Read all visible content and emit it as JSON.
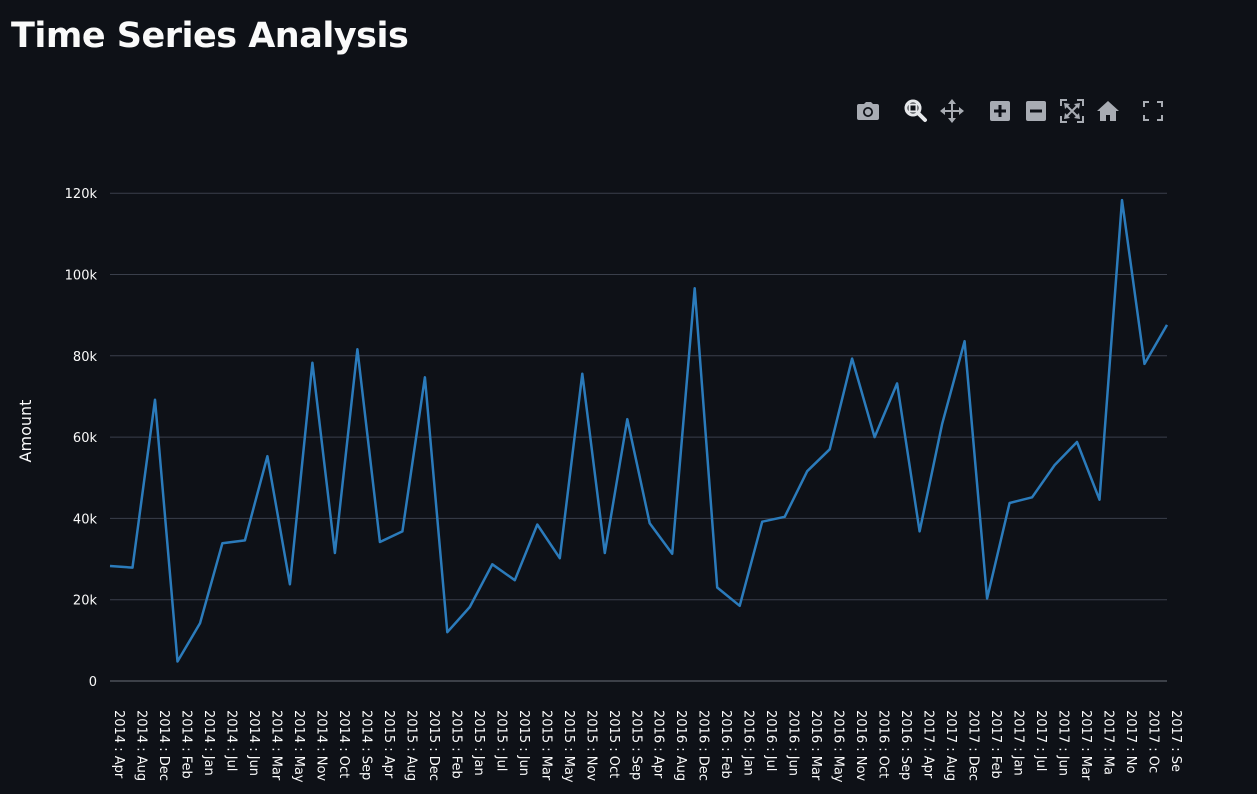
{
  "page": {
    "title": "Time Series Analysis"
  },
  "modebar": {
    "buttons": [
      {
        "name": "camera-icon",
        "tooltip": "Download plot as a png"
      },
      {
        "name": "zoom-icon",
        "tooltip": "Zoom"
      },
      {
        "name": "pan-icon",
        "tooltip": "Pan"
      },
      {
        "name": "zoom-in-icon",
        "tooltip": "Zoom in"
      },
      {
        "name": "zoom-out-icon",
        "tooltip": "Zoom out"
      },
      {
        "name": "autoscale-icon",
        "tooltip": "Autoscale"
      },
      {
        "name": "reset-axes-icon",
        "tooltip": "Reset axes"
      },
      {
        "name": "fullscreen-icon",
        "tooltip": "View fullscreen"
      }
    ],
    "active": "zoom-icon"
  },
  "colors": {
    "background": "#0e1117",
    "line": "#2b7bbb",
    "grid": "#3a3f4b",
    "text": "#fafafa",
    "icon": "#a8acb3"
  },
  "chart_data": {
    "type": "line",
    "ylabel": "Amount",
    "xlabel": "",
    "ylim": [
      0,
      125000
    ],
    "yticks": [
      0,
      20000,
      40000,
      60000,
      80000,
      100000,
      120000
    ],
    "ytick_labels": [
      "0",
      "20k",
      "40k",
      "60k",
      "80k",
      "100k",
      "120k"
    ],
    "grid": true,
    "categories": [
      "2014 : Apr",
      "2014 : Aug",
      "2014 : Dec",
      "2014 : Feb",
      "2014 : Jan",
      "2014 : Jul",
      "2014 : Jun",
      "2014 : Mar",
      "2014 : May",
      "2014 : Nov",
      "2014 : Oct",
      "2014 : Sep",
      "2015 : Apr",
      "2015 : Aug",
      "2015 : Dec",
      "2015 : Feb",
      "2015 : Jan",
      "2015 : Jul",
      "2015 : Jun",
      "2015 : Mar",
      "2015 : May",
      "2015 : Nov",
      "2015 : Oct",
      "2015 : Sep",
      "2016 : Apr",
      "2016 : Aug",
      "2016 : Dec",
      "2016 : Feb",
      "2016 : Jan",
      "2016 : Jul",
      "2016 : Jun",
      "2016 : Mar",
      "2016 : May",
      "2016 : Nov",
      "2016 : Oct",
      "2016 : Sep",
      "2017 : Apr",
      "2017 : Aug",
      "2017 : Dec",
      "2017 : Feb",
      "2017 : Jan",
      "2017 : Jul",
      "2017 : Jun",
      "2017 : Mar",
      "2017 : Ma",
      "2017 : No",
      "2017 : Oc",
      "2017 : Se"
    ],
    "series": [
      {
        "values": [
          28300,
          27900,
          69200,
          4800,
          14200,
          33900,
          34600,
          55300,
          23800,
          78300,
          31500,
          81600,
          34200,
          36800,
          74700,
          12000,
          18200,
          28700,
          24800,
          38500,
          30200,
          75600,
          31500,
          64400,
          38800,
          31300,
          96600,
          23000,
          18500,
          39200,
          40400,
          51600,
          57000,
          79300,
          60000,
          73200,
          36800,
          63200,
          83600,
          20300,
          43800,
          45200,
          53100,
          58800,
          44600,
          118300,
          78000,
          87600
        ]
      }
    ]
  }
}
